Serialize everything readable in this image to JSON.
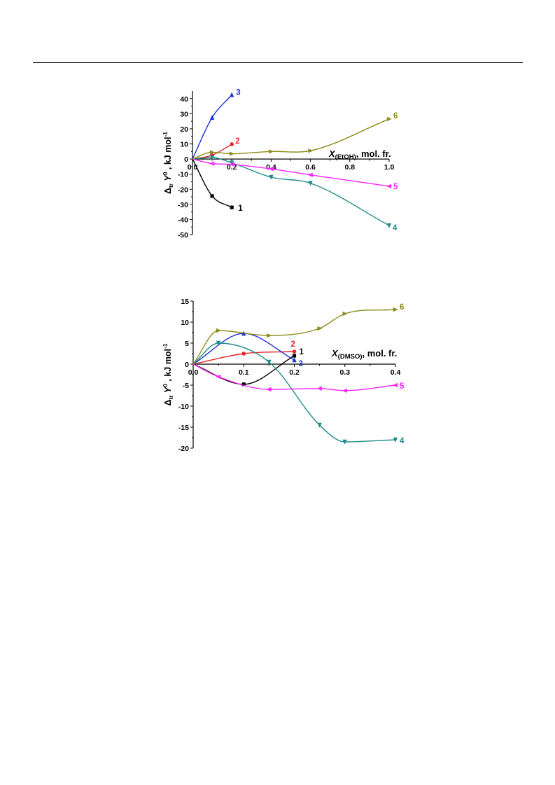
{
  "colors": {
    "s1": "#000000",
    "s2": "#e8262a",
    "s3": "#1d2fd8",
    "s4": "#1f8c8a",
    "s5": "#ff22ff",
    "s6": "#8c8c1a"
  },
  "chart_data": [
    {
      "type": "line",
      "title": "",
      "ylabel": "Δ_tr Y^0 , kJ mol^-1",
      "xlabel_main": "X",
      "xlabel_sub": "(EtOH)",
      "xlabel_rest": ", mol. fr.",
      "xlim": [
        0,
        1.0
      ],
      "ylim": [
        -50,
        45
      ],
      "xticks": [
        0.0,
        0.2,
        0.4,
        0.6,
        0.8,
        1.0
      ],
      "xtick_labels": [
        "0.0",
        "0.2",
        "0.4",
        "0.6",
        "0.8",
        "1.0"
      ],
      "yticks": [
        40,
        30,
        20,
        10,
        0,
        -10,
        -20,
        -30,
        -40,
        -50
      ],
      "ytick_labels": [
        "40",
        "30",
        "20",
        "10",
        "0",
        "-10",
        "-20",
        "-30",
        "-40",
        "-50"
      ],
      "grid": false,
      "series": [
        {
          "name": "1",
          "color_key": "s1",
          "marker": "square",
          "x": [
            0,
            0.1,
            0.2
          ],
          "y": [
            0,
            -24.5,
            -32
          ]
        },
        {
          "name": "2",
          "color_key": "s2",
          "marker": "circle",
          "x": [
            0,
            0.1,
            0.2
          ],
          "y": [
            0,
            2.5,
            9.8
          ]
        },
        {
          "name": "3",
          "color_key": "s3",
          "marker": "triangle-up",
          "x": [
            0,
            0.1,
            0.2
          ],
          "y": [
            0,
            27.5,
            42.5
          ]
        },
        {
          "name": "4",
          "color_key": "s4",
          "marker": "triangle-down",
          "x": [
            0,
            0.1,
            0.2,
            0.4,
            0.6,
            1.0
          ],
          "y": [
            0,
            1.0,
            -2.5,
            -12,
            -16,
            -44
          ]
        },
        {
          "name": "5",
          "color_key": "s5",
          "marker": "triangle-left",
          "x": [
            0,
            0.1,
            0.2,
            0.4,
            0.6,
            1.0
          ],
          "y": [
            0,
            -3,
            -3.5,
            -6.5,
            -10.5,
            -18
          ]
        },
        {
          "name": "6",
          "color_key": "s6",
          "marker": "triangle-right",
          "x": [
            0,
            0.1,
            0.2,
            0.4,
            0.6,
            1.0
          ],
          "y": [
            0,
            4.5,
            3.5,
            5,
            5.5,
            26.5
          ]
        }
      ]
    },
    {
      "type": "line",
      "title": "",
      "ylabel": "Δ_tr Y^0 , kJ mol^-1",
      "xlabel_main": "X",
      "xlabel_sub": "(DMSO)",
      "xlabel_rest": ", mol. fr.",
      "xlim": [
        0,
        0.4
      ],
      "ylim": [
        -20,
        15
      ],
      "xticks": [
        0.0,
        0.1,
        0.2,
        0.3,
        0.4
      ],
      "xtick_labels": [
        "0.0",
        "0.1",
        "0.2",
        "0.3",
        "0.4"
      ],
      "yticks": [
        15,
        10,
        5,
        0,
        -5,
        -10,
        -15,
        -20
      ],
      "ytick_labels": [
        "15",
        "10",
        "5",
        "0",
        "-5",
        "-10",
        "-15",
        "-20"
      ],
      "grid": false,
      "series": [
        {
          "name": "1",
          "color_key": "s1",
          "marker": "square",
          "x": [
            0,
            0.1,
            0.2
          ],
          "y": [
            0,
            -4.8,
            2
          ]
        },
        {
          "name": "2",
          "color_key": "s2",
          "marker": "circle",
          "x": [
            0,
            0.1,
            0.2
          ],
          "y": [
            0,
            2.5,
            3
          ]
        },
        {
          "name": "3",
          "color_key": "s3",
          "marker": "triangle-up",
          "x": [
            0,
            0.1,
            0.2
          ],
          "y": [
            0,
            7.3,
            1
          ]
        },
        {
          "name": "4",
          "color_key": "s4",
          "marker": "triangle-down",
          "x": [
            0,
            0.05,
            0.15,
            0.25,
            0.3,
            0.4
          ],
          "y": [
            0,
            5,
            0.5,
            -14.5,
            -18.5,
            -18
          ]
        },
        {
          "name": "5",
          "color_key": "s5",
          "marker": "triangle-left",
          "x": [
            0,
            0.05,
            0.15,
            0.25,
            0.3,
            0.4
          ],
          "y": [
            0,
            -3,
            -6,
            -5.8,
            -6.3,
            -5
          ]
        },
        {
          "name": "6",
          "color_key": "s6",
          "marker": "triangle-right",
          "x": [
            0,
            0.05,
            0.15,
            0.25,
            0.3,
            0.4
          ],
          "y": [
            0,
            8,
            6.8,
            8.5,
            12,
            13
          ]
        }
      ]
    }
  ]
}
